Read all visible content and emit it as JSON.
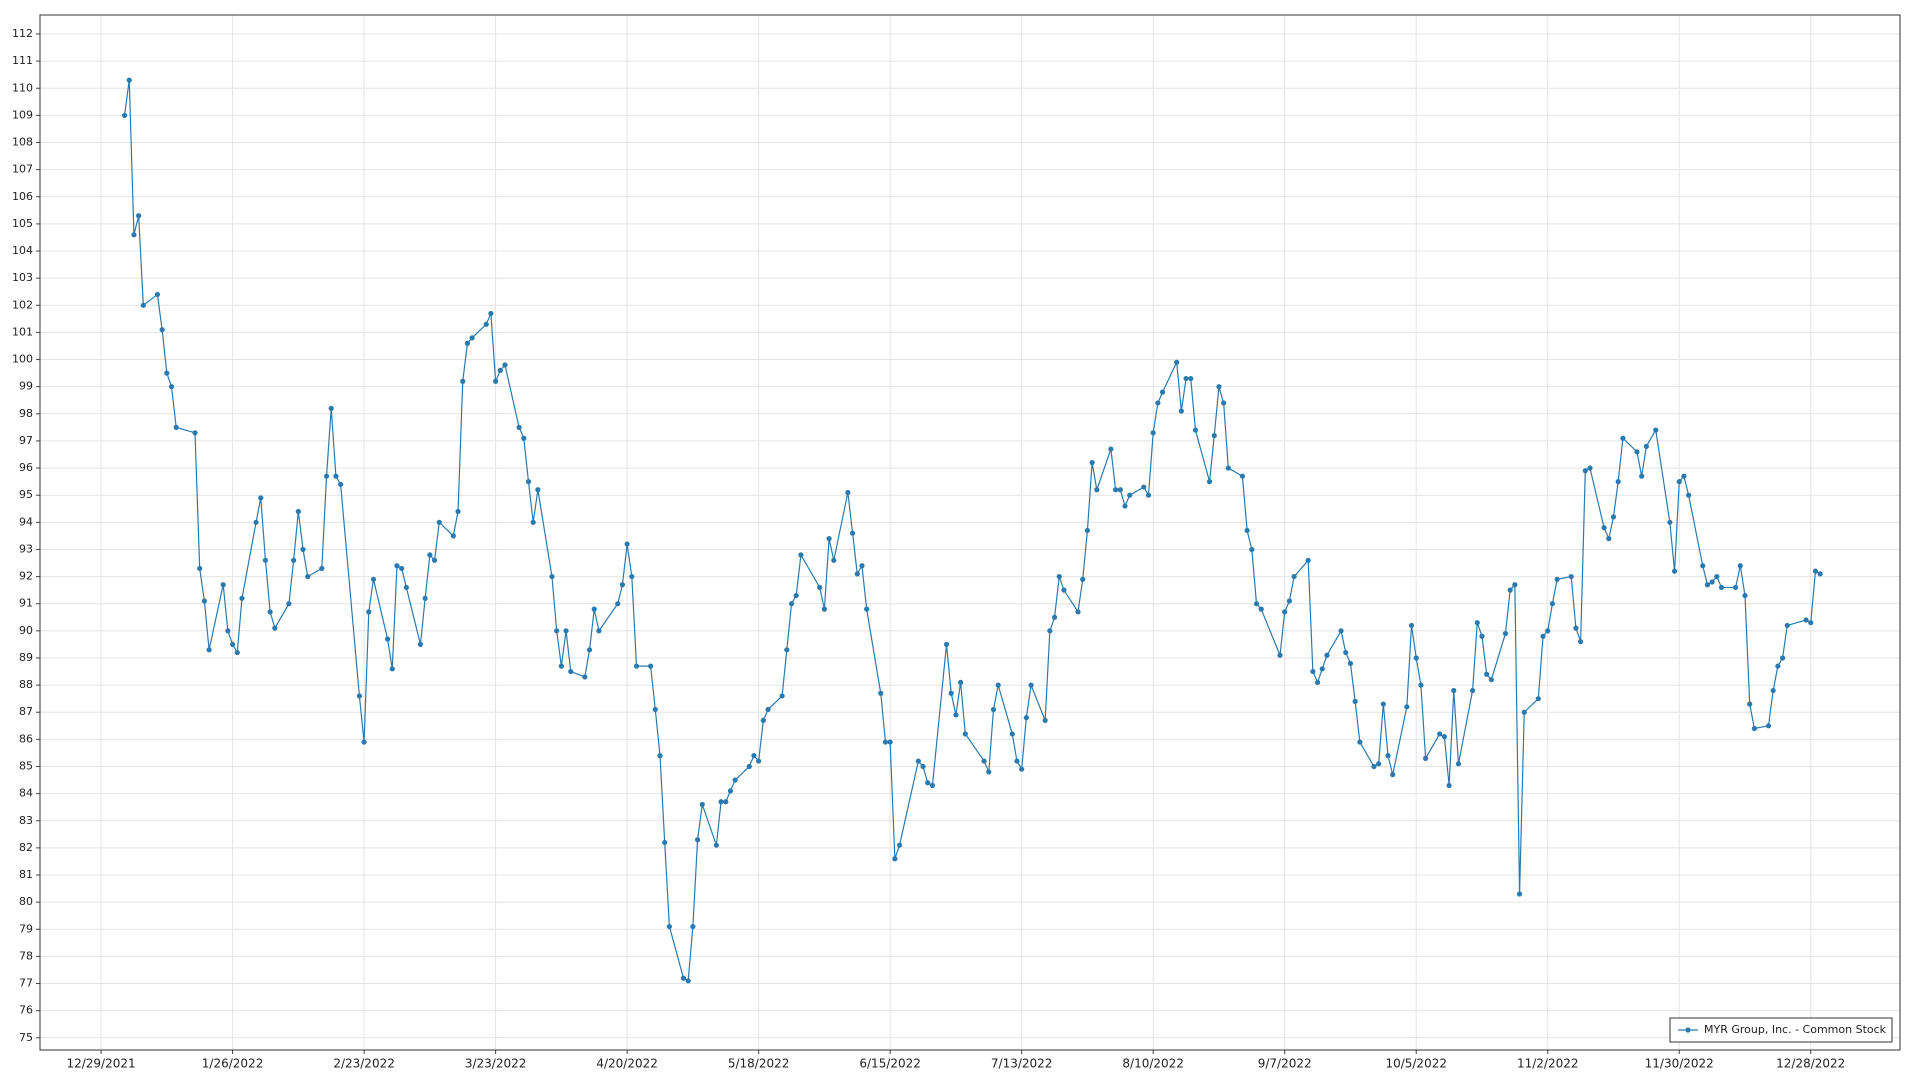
{
  "chart_data": {
    "type": "line",
    "x": [
      "2022-01-03",
      "2022-01-04",
      "2022-01-05",
      "2022-01-06",
      "2022-01-07",
      "2022-01-10",
      "2022-01-11",
      "2022-01-12",
      "2022-01-13",
      "2022-01-14",
      "2022-01-18",
      "2022-01-19",
      "2022-01-20",
      "2022-01-21",
      "2022-01-24",
      "2022-01-25",
      "2022-01-26",
      "2022-01-27",
      "2022-01-28",
      "2022-01-31",
      "2022-02-01",
      "2022-02-02",
      "2022-02-03",
      "2022-02-04",
      "2022-02-07",
      "2022-02-08",
      "2022-02-09",
      "2022-02-10",
      "2022-02-11",
      "2022-02-14",
      "2022-02-15",
      "2022-02-16",
      "2022-02-17",
      "2022-02-18",
      "2022-02-22",
      "2022-02-23",
      "2022-02-24",
      "2022-02-25",
      "2022-02-28",
      "2022-03-01",
      "2022-03-02",
      "2022-03-03",
      "2022-03-04",
      "2022-03-07",
      "2022-03-08",
      "2022-03-09",
      "2022-03-10",
      "2022-03-11",
      "2022-03-14",
      "2022-03-15",
      "2022-03-16",
      "2022-03-17",
      "2022-03-18",
      "2022-03-21",
      "2022-03-22",
      "2022-03-23",
      "2022-03-24",
      "2022-03-25",
      "2022-03-28",
      "2022-03-29",
      "2022-03-30",
      "2022-03-31",
      "2022-04-01",
      "2022-04-04",
      "2022-04-05",
      "2022-04-06",
      "2022-04-07",
      "2022-04-08",
      "2022-04-11",
      "2022-04-12",
      "2022-04-13",
      "2022-04-14",
      "2022-04-18",
      "2022-04-19",
      "2022-04-20",
      "2022-04-21",
      "2022-04-22",
      "2022-04-25",
      "2022-04-26",
      "2022-04-27",
      "2022-04-28",
      "2022-04-29",
      "2022-05-02",
      "2022-05-03",
      "2022-05-04",
      "2022-05-05",
      "2022-05-06",
      "2022-05-09",
      "2022-05-10",
      "2022-05-11",
      "2022-05-12",
      "2022-05-13",
      "2022-05-16",
      "2022-05-17",
      "2022-05-18",
      "2022-05-19",
      "2022-05-20",
      "2022-05-23",
      "2022-05-24",
      "2022-05-25",
      "2022-05-26",
      "2022-05-27",
      "2022-05-31",
      "2022-06-01",
      "2022-06-02",
      "2022-06-03",
      "2022-06-06",
      "2022-06-07",
      "2022-06-08",
      "2022-06-09",
      "2022-06-10",
      "2022-06-13",
      "2022-06-14",
      "2022-06-15",
      "2022-06-16",
      "2022-06-17",
      "2022-06-21",
      "2022-06-22",
      "2022-06-23",
      "2022-06-24",
      "2022-06-27",
      "2022-06-28",
      "2022-06-29",
      "2022-06-30",
      "2022-07-01",
      "2022-07-05",
      "2022-07-06",
      "2022-07-07",
      "2022-07-08",
      "2022-07-11",
      "2022-07-12",
      "2022-07-13",
      "2022-07-14",
      "2022-07-15",
      "2022-07-18",
      "2022-07-19",
      "2022-07-20",
      "2022-07-21",
      "2022-07-22",
      "2022-07-25",
      "2022-07-26",
      "2022-07-27",
      "2022-07-28",
      "2022-07-29",
      "2022-08-01",
      "2022-08-02",
      "2022-08-03",
      "2022-08-04",
      "2022-08-05",
      "2022-08-08",
      "2022-08-09",
      "2022-08-10",
      "2022-08-11",
      "2022-08-12",
      "2022-08-15",
      "2022-08-16",
      "2022-08-17",
      "2022-08-18",
      "2022-08-19",
      "2022-08-22",
      "2022-08-23",
      "2022-08-24",
      "2022-08-25",
      "2022-08-26",
      "2022-08-29",
      "2022-08-30",
      "2022-08-31",
      "2022-09-01",
      "2022-09-02",
      "2022-09-06",
      "2022-09-07",
      "2022-09-08",
      "2022-09-09",
      "2022-09-12",
      "2022-09-13",
      "2022-09-14",
      "2022-09-15",
      "2022-09-16",
      "2022-09-19",
      "2022-09-20",
      "2022-09-21",
      "2022-09-22",
      "2022-09-23",
      "2022-09-26",
      "2022-09-27",
      "2022-09-28",
      "2022-09-29",
      "2022-09-30",
      "2022-10-03",
      "2022-10-04",
      "2022-10-05",
      "2022-10-06",
      "2022-10-07",
      "2022-10-10",
      "2022-10-11",
      "2022-10-12",
      "2022-10-13",
      "2022-10-14",
      "2022-10-17",
      "2022-10-18",
      "2022-10-19",
      "2022-10-20",
      "2022-10-21",
      "2022-10-24",
      "2022-10-25",
      "2022-10-26",
      "2022-10-27",
      "2022-10-28",
      "2022-10-31",
      "2022-11-01",
      "2022-11-02",
      "2022-11-03",
      "2022-11-04",
      "2022-11-07",
      "2022-11-08",
      "2022-11-09",
      "2022-11-10",
      "2022-11-11",
      "2022-11-14",
      "2022-11-15",
      "2022-11-16",
      "2022-11-17",
      "2022-11-18",
      "2022-11-21",
      "2022-11-22",
      "2022-11-23",
      "2022-11-25",
      "2022-11-28",
      "2022-11-29",
      "2022-11-30",
      "2022-12-01",
      "2022-12-02",
      "2022-12-05",
      "2022-12-06",
      "2022-12-07",
      "2022-12-08",
      "2022-12-09",
      "2022-12-12",
      "2022-12-13",
      "2022-12-14",
      "2022-12-15",
      "2022-12-16",
      "2022-12-19",
      "2022-12-20",
      "2022-12-21",
      "2022-12-22",
      "2022-12-23",
      "2022-12-27",
      "2022-12-28",
      "2022-12-29",
      "2022-12-30"
    ],
    "series": [
      {
        "name": "MYR Group, Inc. - Common Stock",
        "color": "#2a7ab0",
        "values": [
          109.0,
          110.3,
          104.6,
          105.3,
          102.0,
          102.4,
          101.1,
          99.5,
          99.0,
          97.5,
          97.3,
          92.3,
          91.1,
          89.3,
          91.7,
          90.0,
          89.5,
          89.2,
          91.2,
          94.0,
          94.9,
          92.6,
          90.7,
          90.1,
          91.0,
          92.6,
          94.4,
          93.0,
          92.0,
          92.3,
          95.7,
          98.2,
          95.7,
          95.4,
          87.6,
          85.9,
          90.7,
          91.9,
          89.7,
          88.6,
          92.4,
          92.3,
          91.6,
          89.5,
          91.2,
          92.8,
          92.6,
          94.0,
          93.5,
          94.4,
          99.2,
          100.6,
          100.8,
          101.3,
          101.7,
          99.2,
          99.6,
          99.8,
          97.5,
          97.1,
          95.5,
          94.0,
          95.2,
          92.0,
          90.0,
          88.7,
          90.0,
          88.5,
          88.3,
          89.3,
          90.8,
          90.0,
          91.0,
          91.7,
          93.2,
          92.0,
          88.7,
          88.7,
          87.1,
          85.4,
          82.2,
          79.1,
          77.2,
          77.1,
          79.1,
          82.3,
          83.6,
          82.1,
          83.7,
          83.7,
          84.1,
          84.5,
          85.0,
          85.4,
          85.2,
          86.7,
          87.1,
          87.6,
          89.3,
          91.0,
          91.3,
          92.8,
          91.6,
          90.8,
          93.4,
          92.6,
          95.1,
          93.6,
          92.1,
          92.4,
          90.8,
          87.7,
          85.9,
          85.9,
          81.6,
          82.1,
          85.2,
          85.0,
          84.4,
          84.3,
          89.5,
          87.7,
          86.9,
          88.1,
          86.2,
          85.2,
          84.8,
          87.1,
          88.0,
          86.2,
          85.2,
          84.9,
          86.8,
          88.0,
          86.7,
          90.0,
          90.5,
          92.0,
          91.5,
          90.7,
          91.9,
          93.7,
          96.2,
          95.2,
          96.7,
          95.2,
          95.2,
          94.6,
          95.0,
          95.3,
          95.0,
          97.3,
          98.4,
          98.8,
          99.9,
          98.1,
          99.3,
          99.3,
          97.4,
          95.5,
          97.2,
          99.0,
          98.4,
          96.0,
          95.7,
          93.7,
          93.0,
          91.0,
          90.8,
          89.1,
          90.7,
          91.1,
          92.0,
          92.6,
          88.5,
          88.1,
          88.6,
          89.1,
          90.0,
          89.2,
          88.8,
          87.4,
          85.9,
          85.0,
          85.1,
          87.3,
          85.4,
          84.7,
          87.2,
          90.2,
          89.0,
          88.0,
          85.3,
          86.2,
          86.1,
          84.3,
          87.8,
          85.1,
          87.8,
          90.3,
          89.8,
          88.4,
          88.2,
          89.9,
          91.5,
          91.7,
          80.3,
          87.0,
          87.5,
          89.8,
          90.0,
          91.0,
          91.9,
          92.0,
          90.1,
          89.6,
          95.9,
          96.0,
          93.8,
          93.4,
          94.2,
          95.5,
          97.1,
          96.6,
          95.7,
          96.8,
          97.4,
          94.0,
          92.2,
          95.5,
          95.7,
          95.0,
          92.4,
          91.7,
          91.8,
          92.0,
          91.6,
          91.6,
          92.4,
          91.3,
          87.3,
          86.4,
          86.5,
          87.8,
          88.7,
          89.0,
          90.2,
          90.4,
          90.3,
          92.2,
          92.1
        ]
      }
    ],
    "xlim": [
      "2021-12-16",
      "2023-01-16"
    ],
    "xticks": [
      {
        "value": "2021-12-29",
        "label": "12/29/2021"
      },
      {
        "value": "2022-01-26",
        "label": "1/26/2022"
      },
      {
        "value": "2022-02-23",
        "label": "2/23/2022"
      },
      {
        "value": "2022-03-23",
        "label": "3/23/2022"
      },
      {
        "value": "2022-04-20",
        "label": "4/20/2022"
      },
      {
        "value": "2022-05-18",
        "label": "5/18/2022"
      },
      {
        "value": "2022-06-15",
        "label": "6/15/2022"
      },
      {
        "value": "2022-07-13",
        "label": "7/13/2022"
      },
      {
        "value": "2022-08-10",
        "label": "8/10/2022"
      },
      {
        "value": "2022-09-07",
        "label": "9/7/2022"
      },
      {
        "value": "2022-10-05",
        "label": "10/5/2022"
      },
      {
        "value": "2022-11-02",
        "label": "11/2/2022"
      },
      {
        "value": "2022-11-30",
        "label": "11/30/2022"
      },
      {
        "value": "2022-12-28",
        "label": "12/28/2022"
      }
    ],
    "ylim": [
      74.55,
      112.7
    ],
    "yticks": [
      75,
      76,
      77,
      78,
      79,
      80,
      81,
      82,
      83,
      84,
      85,
      86,
      87,
      88,
      89,
      90,
      91,
      92,
      93,
      94,
      95,
      96,
      97,
      98,
      99,
      100,
      101,
      102,
      103,
      104,
      105,
      106,
      107,
      108,
      109,
      110,
      111,
      112
    ],
    "grid": true,
    "legend": "lower right"
  }
}
